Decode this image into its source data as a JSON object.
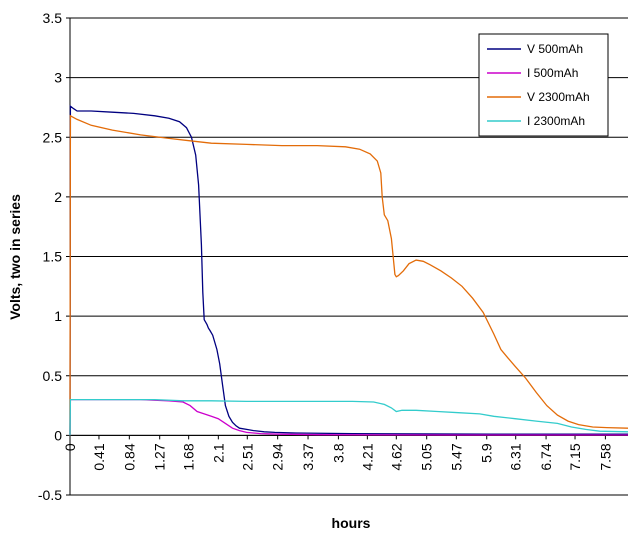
{
  "chart_data": {
    "type": "line",
    "title": "",
    "xlabel": "hours",
    "ylabel": "Volts,  two in series",
    "ylim": [
      -0.5,
      3.5
    ],
    "yticks": [
      3.5,
      3,
      2.5,
      2,
      1.5,
      1,
      0.5,
      0,
      -0.5
    ],
    "ytick_labels": [
      "3.5",
      "3",
      "2.5",
      "2",
      "1.5",
      "1",
      "0.5",
      "0",
      "-0.5"
    ],
    "xlim": [
      0,
      7.9
    ],
    "xticks": [
      0,
      0.41,
      0.84,
      1.27,
      1.68,
      2.1,
      2.51,
      2.94,
      3.37,
      3.8,
      4.21,
      4.62,
      5.05,
      5.47,
      5.9,
      6.31,
      6.74,
      7.15,
      7.58
    ],
    "xtick_labels": [
      "0",
      "0.41",
      "0.84",
      "1.27",
      "1.68",
      "2.1",
      "2.51",
      "2.94",
      "3.37",
      "3.8",
      "4.21",
      "4.62",
      "5.05",
      "5.47",
      "5.9",
      "6.31",
      "6.74",
      "7.15",
      "7.58"
    ],
    "grid": "horizontal",
    "legend_position": "top-right",
    "series": [
      {
        "name": "V 500mAh",
        "color": "#000080",
        "x": [
          0,
          0.005,
          0.05,
          0.1,
          0.3,
          0.6,
          0.9,
          1.2,
          1.4,
          1.55,
          1.65,
          1.72,
          1.78,
          1.82,
          1.86,
          1.88,
          1.9,
          1.92,
          1.94,
          1.96,
          1.98,
          2.02,
          2.08,
          2.12,
          2.16,
          2.2,
          2.25,
          2.3,
          2.35,
          2.4,
          2.5,
          2.6,
          2.75,
          2.9,
          3.2,
          4.0,
          5.0,
          6.0,
          7.0,
          7.9
        ],
        "y": [
          0,
          2.76,
          2.74,
          2.72,
          2.72,
          2.71,
          2.7,
          2.68,
          2.66,
          2.63,
          2.58,
          2.5,
          2.35,
          2.1,
          1.6,
          1.2,
          0.97,
          0.95,
          0.93,
          0.9,
          0.88,
          0.84,
          0.72,
          0.6,
          0.42,
          0.25,
          0.16,
          0.11,
          0.08,
          0.06,
          0.05,
          0.04,
          0.03,
          0.025,
          0.02,
          0.015,
          0.012,
          0.01,
          0.01,
          0.01
        ]
      },
      {
        "name": "I 500mAh",
        "color": "#cc00cc",
        "x": [
          0,
          0.005,
          0.3,
          0.6,
          1.0,
          1.4,
          1.6,
          1.7,
          1.8,
          1.9,
          2.0,
          2.1,
          2.2,
          2.3,
          2.4,
          2.5,
          2.7,
          3.0,
          3.5,
          4.5,
          5.5,
          6.5,
          7.9
        ],
        "y": [
          0,
          0.3,
          0.3,
          0.3,
          0.3,
          0.29,
          0.28,
          0.25,
          0.2,
          0.18,
          0.16,
          0.14,
          0.1,
          0.06,
          0.04,
          0.025,
          0.015,
          0.01,
          0.006,
          0.004,
          0.003,
          0.003,
          0.003
        ]
      },
      {
        "name": "V 2300mAh",
        "color": "#e36c09",
        "x": [
          0,
          0.005,
          0.1,
          0.3,
          0.6,
          1.0,
          1.4,
          1.7,
          2.0,
          2.5,
          3.0,
          3.5,
          3.9,
          4.1,
          4.25,
          4.35,
          4.4,
          4.42,
          4.45,
          4.5,
          4.55,
          4.6,
          4.62,
          4.65,
          4.72,
          4.8,
          4.9,
          5.0,
          5.1,
          5.25,
          5.4,
          5.55,
          5.7,
          5.85,
          6.0,
          6.1,
          6.2,
          6.3,
          6.45,
          6.6,
          6.75,
          6.9,
          7.05,
          7.2,
          7.4,
          7.6,
          7.9
        ],
        "y": [
          0,
          2.68,
          2.65,
          2.6,
          2.56,
          2.52,
          2.49,
          2.47,
          2.45,
          2.44,
          2.43,
          2.43,
          2.42,
          2.4,
          2.36,
          2.3,
          2.2,
          2.0,
          1.85,
          1.8,
          1.65,
          1.35,
          1.33,
          1.34,
          1.38,
          1.44,
          1.47,
          1.46,
          1.43,
          1.38,
          1.32,
          1.25,
          1.15,
          1.03,
          0.85,
          0.72,
          0.65,
          0.58,
          0.48,
          0.36,
          0.25,
          0.17,
          0.12,
          0.09,
          0.07,
          0.065,
          0.06
        ]
      },
      {
        "name": "I 2300mAh",
        "color": "#33cccc",
        "x": [
          0,
          0.005,
          0.3,
          0.8,
          1.2,
          1.6,
          2.0,
          2.5,
          3.0,
          3.5,
          4.0,
          4.3,
          4.45,
          4.55,
          4.62,
          4.7,
          4.9,
          5.2,
          5.5,
          5.8,
          6.0,
          6.3,
          6.6,
          6.9,
          7.1,
          7.3,
          7.5,
          7.9
        ],
        "y": [
          0,
          0.3,
          0.3,
          0.3,
          0.3,
          0.29,
          0.29,
          0.285,
          0.285,
          0.285,
          0.285,
          0.28,
          0.26,
          0.23,
          0.2,
          0.21,
          0.21,
          0.2,
          0.19,
          0.18,
          0.16,
          0.14,
          0.12,
          0.1,
          0.07,
          0.05,
          0.035,
          0.03
        ]
      }
    ]
  }
}
